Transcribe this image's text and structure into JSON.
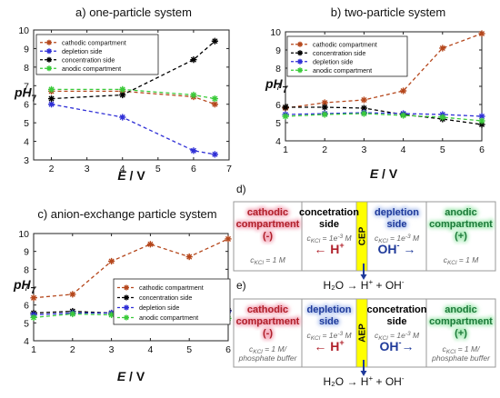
{
  "chart_data": [
    {
      "id": "a",
      "type": "line",
      "title": "a) one-particle system",
      "xlabel_main": "E",
      "xlabel_unit": " / V",
      "ylabel_main": "pH",
      "ylabel_sub": "7",
      "xlim": [
        1.5,
        7
      ],
      "ylim": [
        3,
        10
      ],
      "xticks": [
        2,
        3,
        4,
        5,
        6,
        7
      ],
      "yticks": [
        3,
        4,
        5,
        6,
        7,
        8,
        9,
        10
      ],
      "legend_position": "top-left",
      "series": [
        {
          "name": "cathodic compartment",
          "color": "#b5471c",
          "x": [
            2,
            4,
            6,
            6.6
          ],
          "y": [
            6.7,
            6.7,
            6.4,
            6.0
          ]
        },
        {
          "name": "depletion side",
          "color": "#2f2fd6",
          "x": [
            2,
            4,
            6,
            6.6
          ],
          "y": [
            6.0,
            5.3,
            3.5,
            3.3
          ]
        },
        {
          "name": "concentration side",
          "color": "#000000",
          "x": [
            2,
            4,
            6,
            6.6
          ],
          "y": [
            6.3,
            6.5,
            8.4,
            9.4
          ]
        },
        {
          "name": "anodic compartment",
          "color": "#3acb3a",
          "x": [
            2,
            4,
            6,
            6.6
          ],
          "y": [
            6.8,
            6.8,
            6.5,
            6.3
          ]
        }
      ]
    },
    {
      "id": "b",
      "type": "line",
      "title": "b) two-particle system",
      "xlabel_main": "E",
      "xlabel_unit": " / V",
      "ylabel_main": "pH",
      "ylabel_sub": "7",
      "xlim": [
        1,
        6
      ],
      "ylim": [
        4,
        10
      ],
      "xticks": [
        1,
        2,
        3,
        4,
        5,
        6
      ],
      "yticks": [
        4,
        5,
        6,
        7,
        8,
        9,
        10
      ],
      "legend_position": "top-left",
      "series": [
        {
          "name": "cathodic compartment",
          "color": "#b5471c",
          "x": [
            1,
            2,
            3,
            4,
            5,
            6
          ],
          "y": [
            5.8,
            6.1,
            6.25,
            6.75,
            9.1,
            9.9
          ]
        },
        {
          "name": "concentration side",
          "color": "#000000",
          "x": [
            1,
            2,
            3,
            4,
            5,
            6
          ],
          "y": [
            5.85,
            5.85,
            5.8,
            5.45,
            5.2,
            4.9
          ]
        },
        {
          "name": "depletion side",
          "color": "#2f2fd6",
          "x": [
            1,
            2,
            3,
            4,
            5,
            6
          ],
          "y": [
            5.45,
            5.5,
            5.55,
            5.5,
            5.45,
            5.35
          ]
        },
        {
          "name": "anodic compartment",
          "color": "#3acb3a",
          "x": [
            1,
            2,
            3,
            4,
            5,
            6
          ],
          "y": [
            5.35,
            5.45,
            5.5,
            5.4,
            5.3,
            5.1
          ]
        }
      ]
    },
    {
      "id": "c",
      "type": "line",
      "title": "c) anion-exchange particle system",
      "xlabel_main": "E",
      "xlabel_unit": " / V",
      "ylabel_main": "pH",
      "ylabel_sub": "7",
      "xlim": [
        1,
        6
      ],
      "ylim": [
        4,
        10
      ],
      "xticks": [
        1,
        2,
        3,
        4,
        5,
        6
      ],
      "yticks": [
        4,
        5,
        6,
        7,
        8,
        9,
        10
      ],
      "legend_position": "bottom-right",
      "series": [
        {
          "name": "cathodic compartment",
          "color": "#b5471c",
          "x": [
            1,
            2,
            3,
            4,
            5,
            6
          ],
          "y": [
            6.4,
            6.6,
            8.45,
            9.4,
            8.7,
            9.7
          ]
        },
        {
          "name": "concentration side",
          "color": "#000000",
          "x": [
            1,
            2,
            3,
            4,
            5,
            6
          ],
          "y": [
            5.55,
            5.65,
            5.55,
            5.5,
            5.25,
            5.7
          ]
        },
        {
          "name": "depletion side",
          "color": "#2f2fd6",
          "x": [
            1,
            2,
            3,
            4,
            5,
            6
          ],
          "y": [
            5.45,
            5.55,
            5.55,
            5.45,
            5.5,
            5.65
          ]
        },
        {
          "name": "anodic compartment",
          "color": "#3acb3a",
          "x": [
            1,
            2,
            3,
            4,
            5,
            6
          ],
          "y": [
            5.3,
            5.5,
            5.45,
            5.35,
            5.4,
            5.25
          ]
        }
      ]
    }
  ],
  "schematics": [
    {
      "id": "d",
      "label": "d)",
      "membrane": "CEP",
      "membrane_color": "#ffff00",
      "equation": {
        "left": "H₂O → H",
        "sup1": "+",
        "mid": " + OH",
        "sup2": "-"
      },
      "compartments": [
        {
          "lines": [
            "cathodic",
            "compartment",
            "(-)"
          ],
          "color": "#b0202a",
          "glow": "#f3a4b6",
          "bold": true,
          "note": [
            "c",
            "KCl",
            " = 1 M"
          ]
        },
        {
          "lines": [
            "concetration",
            "side"
          ],
          "color": "#000000",
          "glow": "none",
          "bold": true,
          "note": [
            "c",
            "KCl",
            " = 1e",
            "-3",
            " M"
          ],
          "ion": {
            "text": "← H",
            "sup": "+",
            "color": "#b0202a"
          }
        },
        {
          "lines": [
            "depletion",
            "side"
          ],
          "color": "#1f3a9a",
          "glow": "#b6c8f0",
          "bold": true,
          "note": [
            "c",
            "KCl",
            " = 1e",
            "-3",
            " M"
          ],
          "ion": {
            "text": "OH",
            "sup": "-",
            "after": " →",
            "color": "#1f3a9a"
          }
        },
        {
          "lines": [
            "anodic",
            "compartment",
            "(+)"
          ],
          "color": "#1d7a3a",
          "glow": "#a8eab6",
          "bold": true,
          "note": [
            "c",
            "KCl",
            " = 1 M"
          ]
        }
      ]
    },
    {
      "id": "e",
      "label": "e)",
      "membrane": "AEP",
      "membrane_color": "#ffff00",
      "equation": {
        "left": "H₂O → H",
        "sup1": "+",
        "mid": " + OH",
        "sup2": "-"
      },
      "compartments": [
        {
          "lines": [
            "cathodic",
            "compartment",
            "(-)"
          ],
          "color": "#b0202a",
          "glow": "#f3a4b6",
          "bold": true,
          "note": [
            "c",
            "KCl",
            " = 1 M/",
            "",
            "",
            "phosphate buffer"
          ]
        },
        {
          "lines": [
            "depletion",
            "side"
          ],
          "color": "#1f3a9a",
          "glow": "#b6c8f0",
          "bold": true,
          "note": [
            "c",
            "KCl",
            " = 1e",
            "-3",
            " M"
          ],
          "ion": {
            "text": "← H",
            "sup": "+",
            "color": "#b0202a"
          }
        },
        {
          "lines": [
            "concetration",
            "side"
          ],
          "color": "#000000",
          "glow": "none",
          "bold": true,
          "note": [
            "c",
            "KCl",
            " = 1e",
            "-3",
            " M"
          ],
          "ion": {
            "text": "OH",
            "sup": "-",
            "after": "→",
            "color": "#1f3a9a"
          }
        },
        {
          "lines": [
            "anodic",
            "compartment",
            "(+)"
          ],
          "color": "#1d7a3a",
          "glow": "#a8eab6",
          "bold": true,
          "note": [
            "c",
            "KCl",
            " = 1 M/",
            "",
            "",
            "phosphate buffer"
          ]
        }
      ]
    }
  ]
}
